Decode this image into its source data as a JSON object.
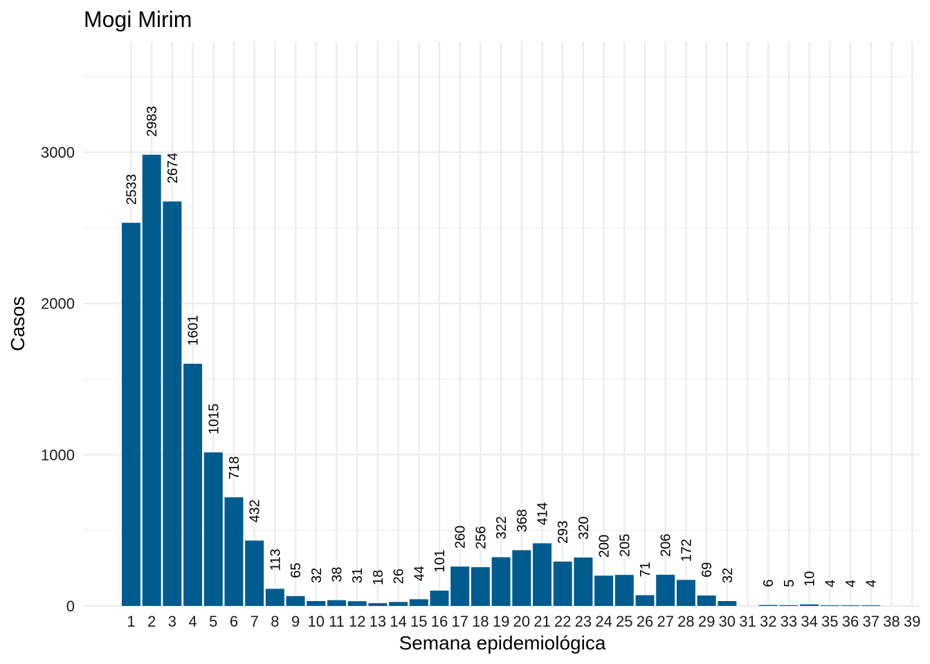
{
  "chart_data": {
    "type": "bar",
    "title": "Mogi Mirim",
    "xlabel": "Semana epidemiológica",
    "ylabel": "Casos",
    "categories": [
      "1",
      "2",
      "3",
      "4",
      "5",
      "6",
      "7",
      "8",
      "9",
      "10",
      "11",
      "12",
      "13",
      "14",
      "15",
      "16",
      "17",
      "18",
      "19",
      "20",
      "21",
      "22",
      "23",
      "24",
      "25",
      "26",
      "27",
      "28",
      "29",
      "30",
      "31",
      "32",
      "33",
      "34",
      "35",
      "36",
      "37",
      "38",
      "39"
    ],
    "values": [
      2533,
      2983,
      2674,
      1601,
      1015,
      718,
      432,
      113,
      65,
      32,
      38,
      31,
      18,
      26,
      44,
      101,
      260,
      256,
      322,
      368,
      414,
      293,
      320,
      200,
      205,
      71,
      206,
      172,
      69,
      32,
      0,
      6,
      5,
      10,
      4,
      4,
      4,
      0,
      0
    ],
    "data_labels": [
      "2533",
      "2983",
      "2674",
      "1601",
      "1015",
      "718",
      "432",
      "113",
      "65",
      "32",
      "38",
      "31",
      "18",
      "26",
      "44",
      "101",
      "260",
      "256",
      "322",
      "368",
      "414",
      "293",
      "320",
      "200",
      "205",
      "71",
      "206",
      "172",
      "69",
      "32",
      "",
      "6",
      "5",
      "10",
      "4",
      "4",
      "4",
      "",
      ""
    ],
    "yticks": [
      0,
      1000,
      2000,
      3000
    ],
    "ylim": [
      0,
      3650
    ],
    "grid": true,
    "legend": "none",
    "bar_color": "#005b8f"
  }
}
